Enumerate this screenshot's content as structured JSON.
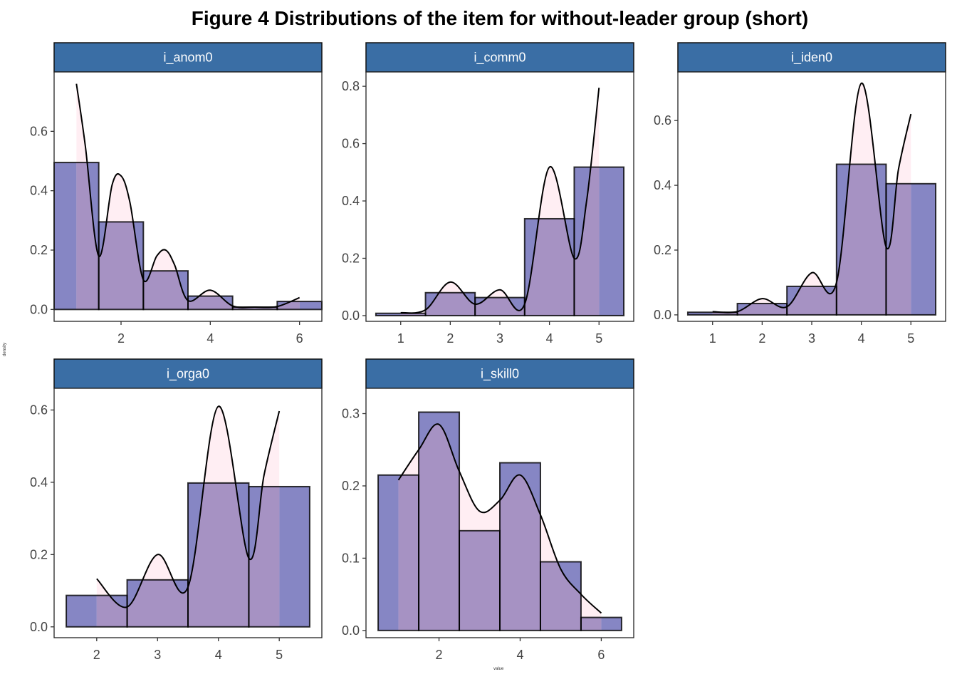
{
  "chart_data": {
    "type": "bar",
    "title": "Figure  4 Distributions of the item for without-leader group (short)",
    "xlabel": "value",
    "ylabel": "density",
    "colors": {
      "histogram": "#8686c4",
      "density_fill": "#ffe8ee",
      "overlap": "#a692c3",
      "strip": "#3a6ea5",
      "curve": "#000000"
    },
    "grid": false,
    "panels": [
      {
        "label": "i_anom0",
        "xlim": [
          0.5,
          6.5
        ],
        "ylim": [
          -0.04,
          0.8
        ],
        "xticks": [
          2,
          4,
          6
        ],
        "yticks": [
          0.0,
          0.2,
          0.4,
          0.6
        ],
        "bins": [
          {
            "x": 1,
            "value": 0.495
          },
          {
            "x": 2,
            "value": 0.295
          },
          {
            "x": 3,
            "value": 0.13
          },
          {
            "x": 4,
            "value": 0.045
          },
          {
            "x": 5,
            "value": 0.008
          },
          {
            "x": 6,
            "value": 0.027
          }
        ],
        "density": [
          [
            1,
            0.76
          ],
          [
            1.2,
            0.55
          ],
          [
            1.5,
            0.18
          ],
          [
            1.8,
            0.42
          ],
          [
            2,
            0.45
          ],
          [
            2.2,
            0.36
          ],
          [
            2.5,
            0.1
          ],
          [
            2.8,
            0.18
          ],
          [
            3,
            0.2
          ],
          [
            3.2,
            0.15
          ],
          [
            3.5,
            0.03
          ],
          [
            4,
            0.065
          ],
          [
            4.5,
            0.012
          ],
          [
            5,
            0.008
          ],
          [
            5.5,
            0.01
          ],
          [
            6,
            0.04
          ]
        ]
      },
      {
        "label": "i_comm0",
        "xlim": [
          0.3,
          5.7
        ],
        "ylim": [
          -0.02,
          0.85
        ],
        "xticks": [
          1,
          2,
          3,
          4,
          5
        ],
        "yticks": [
          0.0,
          0.2,
          0.4,
          0.6,
          0.8
        ],
        "bins": [
          {
            "x": 1,
            "value": 0.008
          },
          {
            "x": 2,
            "value": 0.08
          },
          {
            "x": 3,
            "value": 0.063
          },
          {
            "x": 4,
            "value": 0.338
          },
          {
            "x": 5,
            "value": 0.518
          }
        ],
        "density": [
          [
            1,
            0.01
          ],
          [
            1.5,
            0.02
          ],
          [
            2,
            0.117
          ],
          [
            2.5,
            0.04
          ],
          [
            3,
            0.09
          ],
          [
            3.5,
            0.04
          ],
          [
            4,
            0.518
          ],
          [
            4.5,
            0.2
          ],
          [
            4.75,
            0.4
          ],
          [
            5,
            0.795
          ]
        ]
      },
      {
        "label": "i_iden0",
        "xlim": [
          0.3,
          5.7
        ],
        "ylim": [
          -0.02,
          0.75
        ],
        "xticks": [
          1,
          2,
          3,
          4,
          5
        ],
        "yticks": [
          0.0,
          0.2,
          0.4,
          0.6
        ],
        "bins": [
          {
            "x": 1,
            "value": 0.008
          },
          {
            "x": 2,
            "value": 0.035
          },
          {
            "x": 3,
            "value": 0.088
          },
          {
            "x": 4,
            "value": 0.465
          },
          {
            "x": 5,
            "value": 0.405
          }
        ],
        "density": [
          [
            1,
            0.01
          ],
          [
            1.5,
            0.01
          ],
          [
            2,
            0.05
          ],
          [
            2.5,
            0.025
          ],
          [
            3,
            0.13
          ],
          [
            3.5,
            0.1
          ],
          [
            4,
            0.715
          ],
          [
            4.5,
            0.21
          ],
          [
            4.75,
            0.45
          ],
          [
            5,
            0.62
          ]
        ]
      },
      {
        "label": "i_orga0",
        "xlim": [
          1.3,
          5.7
        ],
        "ylim": [
          -0.03,
          0.66
        ],
        "xticks": [
          2,
          3,
          4,
          5
        ],
        "yticks": [
          0.0,
          0.2,
          0.4,
          0.6
        ],
        "bins": [
          {
            "x": 2,
            "value": 0.087
          },
          {
            "x": 3,
            "value": 0.13
          },
          {
            "x": 4,
            "value": 0.398
          },
          {
            "x": 5,
            "value": 0.388
          }
        ],
        "density": [
          [
            2,
            0.133
          ],
          [
            2.5,
            0.055
          ],
          [
            3,
            0.2
          ],
          [
            3.5,
            0.11
          ],
          [
            4,
            0.61
          ],
          [
            4.5,
            0.19
          ],
          [
            4.75,
            0.42
          ],
          [
            5,
            0.597
          ]
        ]
      },
      {
        "label": "i_skill0",
        "xlim": [
          0.2,
          6.8
        ],
        "ylim": [
          -0.01,
          0.335
        ],
        "xticks": [
          2,
          4,
          6
        ],
        "yticks": [
          0.0,
          0.1,
          0.2,
          0.3
        ],
        "bins": [
          {
            "x": 1,
            "value": 0.215
          },
          {
            "x": 2,
            "value": 0.302
          },
          {
            "x": 3,
            "value": 0.138
          },
          {
            "x": 4,
            "value": 0.232
          },
          {
            "x": 5,
            "value": 0.095
          },
          {
            "x": 6,
            "value": 0.018
          }
        ],
        "density": [
          [
            1,
            0.208
          ],
          [
            1.5,
            0.25
          ],
          [
            2,
            0.285
          ],
          [
            2.5,
            0.22
          ],
          [
            3,
            0.165
          ],
          [
            3.5,
            0.18
          ],
          [
            4,
            0.215
          ],
          [
            4.5,
            0.16
          ],
          [
            5,
            0.085
          ],
          [
            5.5,
            0.05
          ],
          [
            6,
            0.024
          ]
        ]
      }
    ]
  }
}
